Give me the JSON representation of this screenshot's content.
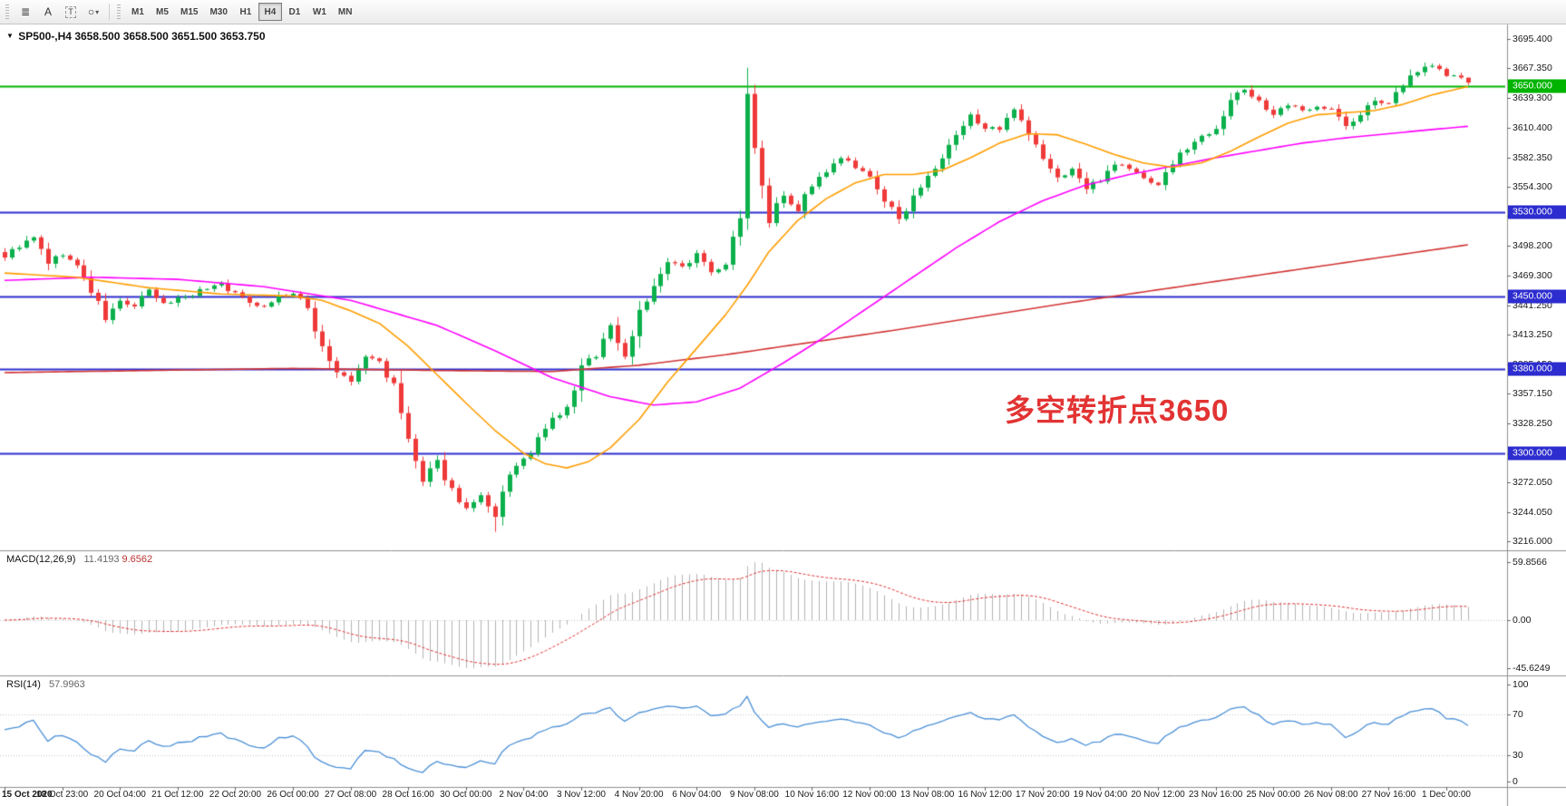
{
  "toolbar": {
    "tools": [
      {
        "name": "chart-list-tool",
        "glyph": "≣"
      },
      {
        "name": "text-tool",
        "glyph": "A"
      },
      {
        "name": "text-label-tool",
        "glyph": "T",
        "boxed": true
      },
      {
        "name": "shapes-tool",
        "glyph": "○",
        "caret": "▾"
      }
    ],
    "timeframes": [
      "M1",
      "M5",
      "M15",
      "M30",
      "H1",
      "H4",
      "D1",
      "W1",
      "MN"
    ],
    "active_timeframe": "H4"
  },
  "chart": {
    "marker": "▼",
    "symbol_tf": "SP500-,H4",
    "ohlc": "3658.500 3658.500 3651.500 3653.750",
    "annotation": {
      "text": "多空转折点3650",
      "color": "#e23333"
    },
    "colors": {
      "candle_up": "#0cb04c",
      "candle_down": "#ef3a3a",
      "level_blue": "#2d2dcf",
      "level_green": "#00b400",
      "macd_hist": "#b3b3b3",
      "macd_signal": "#e03030",
      "rsi_line": "#4a8fd6",
      "grid_dotted": "#c4c4c4",
      "separator": "#8f8f8f",
      "tick": "#666666"
    }
  },
  "macd_panel": {
    "name": "MACD(12,26,9)",
    "value_main": "11.4193",
    "value_signal": "9.6562",
    "axis_labels": [
      "59.8566",
      "0.00",
      "-45.6249"
    ]
  },
  "rsi_panel": {
    "name": "RSI(14)",
    "value": "57.9963",
    "axis_labels": [
      "100",
      "70",
      "30",
      "0"
    ]
  },
  "chart_data": {
    "type": "candlestick",
    "symbol": "SP500-",
    "timeframe": "H4",
    "bars": 204,
    "ylim": [
      3216.0,
      3695.4
    ],
    "y_tick_labels": [
      "3695.400",
      "3667.350",
      "3639.300",
      "3610.400",
      "3582.350",
      "3554.300",
      "3526.250",
      "3498.200",
      "3469.300",
      "3441.250",
      "3413.250",
      "3385.150",
      "3357.150",
      "3328.250",
      "3300.150",
      "3272.050",
      "3244.050",
      "3216.000"
    ],
    "x_tick_labels": [
      "15 Oct 2020",
      "18 Oct 23:00",
      "20 Oct 04:00",
      "21 Oct 12:00",
      "22 Oct 20:00",
      "26 Oct 00:00",
      "27 Oct 08:00",
      "28 Oct 16:00",
      "30 Oct 00:00",
      "2 Nov 04:00",
      "3 Nov 12:00",
      "4 Nov 20:00",
      "6 Nov 04:00",
      "9 Nov 08:00",
      "10 Nov 16:00",
      "12 Nov 00:00",
      "13 Nov 08:00",
      "16 Nov 12:00",
      "17 Nov 20:00",
      "19 Nov 04:00",
      "20 Nov 12:00",
      "23 Nov 16:00",
      "25 Nov 00:00",
      "26 Nov 08:00",
      "27 Nov 16:00",
      "1 Dec 00:00"
    ],
    "x_tick_step_bars": 8,
    "horizontal_levels": [
      {
        "value": 3650.0,
        "label": "3650.000",
        "color": "#00b400"
      },
      {
        "value": 3530.0,
        "label": "3530.000",
        "color": "#2d2dcf"
      },
      {
        "value": 3450.0,
        "label": "3450.000",
        "color": "#2d2dcf"
      },
      {
        "value": 3380.0,
        "label": "3380.000",
        "color": "#2d2dcf"
      },
      {
        "value": 3300.0,
        "label": "3300.000",
        "color": "#2d2dcf"
      }
    ],
    "last_bar": {
      "open": 3658.5,
      "high": 3658.5,
      "low": 3651.5,
      "close": 3653.75
    },
    "close_waypoints": [
      [
        0,
        3488
      ],
      [
        2,
        3498
      ],
      [
        4,
        3505
      ],
      [
        6,
        3482
      ],
      [
        8,
        3490
      ],
      [
        10,
        3478
      ],
      [
        12,
        3455
      ],
      [
        14,
        3428
      ],
      [
        16,
        3445
      ],
      [
        18,
        3440
      ],
      [
        20,
        3455
      ],
      [
        22,
        3442
      ],
      [
        24,
        3448
      ],
      [
        26,
        3452
      ],
      [
        28,
        3458
      ],
      [
        30,
        3462
      ],
      [
        32,
        3452
      ],
      [
        34,
        3445
      ],
      [
        36,
        3440
      ],
      [
        38,
        3450
      ],
      [
        40,
        3452
      ],
      [
        42,
        3438
      ],
      [
        44,
        3402
      ],
      [
        46,
        3377
      ],
      [
        48,
        3368
      ],
      [
        50,
        3392
      ],
      [
        52,
        3388
      ],
      [
        54,
        3362
      ],
      [
        56,
        3312
      ],
      [
        58,
        3272
      ],
      [
        60,
        3292
      ],
      [
        62,
        3265
      ],
      [
        64,
        3247
      ],
      [
        66,
        3258
      ],
      [
        68,
        3237
      ],
      [
        70,
        3282
      ],
      [
        72,
        3292
      ],
      [
        74,
        3312
      ],
      [
        76,
        3332
      ],
      [
        78,
        3342
      ],
      [
        80,
        3382
      ],
      [
        82,
        3395
      ],
      [
        84,
        3422
      ],
      [
        86,
        3392
      ],
      [
        88,
        3437
      ],
      [
        90,
        3457
      ],
      [
        92,
        3482
      ],
      [
        94,
        3477
      ],
      [
        96,
        3492
      ],
      [
        98,
        3472
      ],
      [
        100,
        3482
      ],
      [
        102,
        3522
      ],
      [
        103,
        3643
      ],
      [
        104,
        3592
      ],
      [
        105,
        3562
      ],
      [
        106,
        3522
      ],
      [
        107,
        3542
      ],
      [
        108,
        3547
      ],
      [
        110,
        3532
      ],
      [
        112,
        3557
      ],
      [
        114,
        3567
      ],
      [
        116,
        3582
      ],
      [
        118,
        3572
      ],
      [
        120,
        3562
      ],
      [
        122,
        3542
      ],
      [
        124,
        3522
      ],
      [
        126,
        3547
      ],
      [
        128,
        3562
      ],
      [
        130,
        3582
      ],
      [
        132,
        3602
      ],
      [
        134,
        3622
      ],
      [
        136,
        3612
      ],
      [
        138,
        3607
      ],
      [
        140,
        3627
      ],
      [
        142,
        3602
      ],
      [
        144,
        3582
      ],
      [
        146,
        3562
      ],
      [
        148,
        3572
      ],
      [
        150,
        3552
      ],
      [
        152,
        3562
      ],
      [
        154,
        3577
      ],
      [
        156,
        3572
      ],
      [
        158,
        3562
      ],
      [
        160,
        3557
      ],
      [
        162,
        3577
      ],
      [
        164,
        3592
      ],
      [
        166,
        3602
      ],
      [
        168,
        3612
      ],
      [
        170,
        3637
      ],
      [
        172,
        3647
      ],
      [
        174,
        3637
      ],
      [
        176,
        3622
      ],
      [
        178,
        3632
      ],
      [
        180,
        3627
      ],
      [
        182,
        3632
      ],
      [
        184,
        3628
      ],
      [
        186,
        3612
      ],
      [
        188,
        3622
      ],
      [
        190,
        3638
      ],
      [
        192,
        3632
      ],
      [
        194,
        3652
      ],
      [
        196,
        3666
      ],
      [
        198,
        3671
      ],
      [
        200,
        3661
      ],
      [
        202,
        3658.5
      ],
      [
        203,
        3653.75
      ]
    ],
    "moving_averages": [
      {
        "name": "ma-fast-orange",
        "color": "#ff9d00",
        "points": [
          [
            0,
            3472
          ],
          [
            10,
            3468
          ],
          [
            20,
            3458
          ],
          [
            30,
            3452
          ],
          [
            40,
            3450
          ],
          [
            44,
            3446
          ],
          [
            48,
            3436
          ],
          [
            52,
            3424
          ],
          [
            56,
            3402
          ],
          [
            60,
            3375
          ],
          [
            64,
            3348
          ],
          [
            68,
            3322
          ],
          [
            72,
            3300
          ],
          [
            75,
            3290
          ],
          [
            78,
            3286
          ],
          [
            81,
            3292
          ],
          [
            84,
            3305
          ],
          [
            88,
            3332
          ],
          [
            92,
            3368
          ],
          [
            96,
            3400
          ],
          [
            100,
            3432
          ],
          [
            103,
            3460
          ],
          [
            106,
            3492
          ],
          [
            110,
            3522
          ],
          [
            114,
            3543
          ],
          [
            118,
            3558
          ],
          [
            122,
            3566
          ],
          [
            126,
            3566
          ],
          [
            130,
            3570
          ],
          [
            134,
            3582
          ],
          [
            138,
            3596
          ],
          [
            142,
            3605
          ],
          [
            146,
            3604
          ],
          [
            150,
            3595
          ],
          [
            154,
            3585
          ],
          [
            158,
            3577
          ],
          [
            162,
            3573
          ],
          [
            166,
            3577
          ],
          [
            170,
            3588
          ],
          [
            174,
            3602
          ],
          [
            178,
            3615
          ],
          [
            182,
            3623
          ],
          [
            186,
            3625
          ],
          [
            190,
            3627
          ],
          [
            194,
            3633
          ],
          [
            198,
            3642
          ],
          [
            203,
            3650
          ]
        ]
      },
      {
        "name": "ma-mid-magenta",
        "color": "#ff00ff",
        "points": [
          [
            0,
            3465
          ],
          [
            12,
            3468
          ],
          [
            24,
            3466
          ],
          [
            36,
            3459
          ],
          [
            48,
            3446
          ],
          [
            60,
            3422
          ],
          [
            68,
            3398
          ],
          [
            76,
            3372
          ],
          [
            84,
            3354
          ],
          [
            90,
            3346
          ],
          [
            96,
            3349
          ],
          [
            102,
            3362
          ],
          [
            108,
            3386
          ],
          [
            114,
            3412
          ],
          [
            120,
            3440
          ],
          [
            126,
            3468
          ],
          [
            132,
            3496
          ],
          [
            138,
            3521
          ],
          [
            144,
            3541
          ],
          [
            150,
            3556
          ],
          [
            156,
            3566
          ],
          [
            162,
            3574
          ],
          [
            168,
            3582
          ],
          [
            174,
            3589
          ],
          [
            180,
            3596
          ],
          [
            186,
            3601
          ],
          [
            192,
            3605
          ],
          [
            198,
            3609
          ],
          [
            203,
            3612
          ]
        ]
      },
      {
        "name": "ma-slow-red",
        "color": "#d23535",
        "points": [
          [
            0,
            3377
          ],
          [
            20,
            3379
          ],
          [
            40,
            3381
          ],
          [
            60,
            3379
          ],
          [
            76,
            3378
          ],
          [
            88,
            3384
          ],
          [
            100,
            3394
          ],
          [
            112,
            3406
          ],
          [
            124,
            3418
          ],
          [
            136,
            3431
          ],
          [
            148,
            3444
          ],
          [
            160,
            3456
          ],
          [
            172,
            3468
          ],
          [
            184,
            3480
          ],
          [
            194,
            3490
          ],
          [
            203,
            3499
          ]
        ]
      }
    ],
    "indicators": [
      {
        "name": "MACD",
        "params": [
          12,
          26,
          9
        ],
        "values": [
          11.4193,
          9.6562
        ],
        "panel_axis": [
          59.8566,
          0,
          -45.6249
        ]
      },
      {
        "name": "RSI",
        "params": [
          14
        ],
        "value": 57.9963,
        "panel_axis": [
          100,
          70,
          30,
          0
        ],
        "levels": [
          70,
          30
        ]
      }
    ]
  }
}
